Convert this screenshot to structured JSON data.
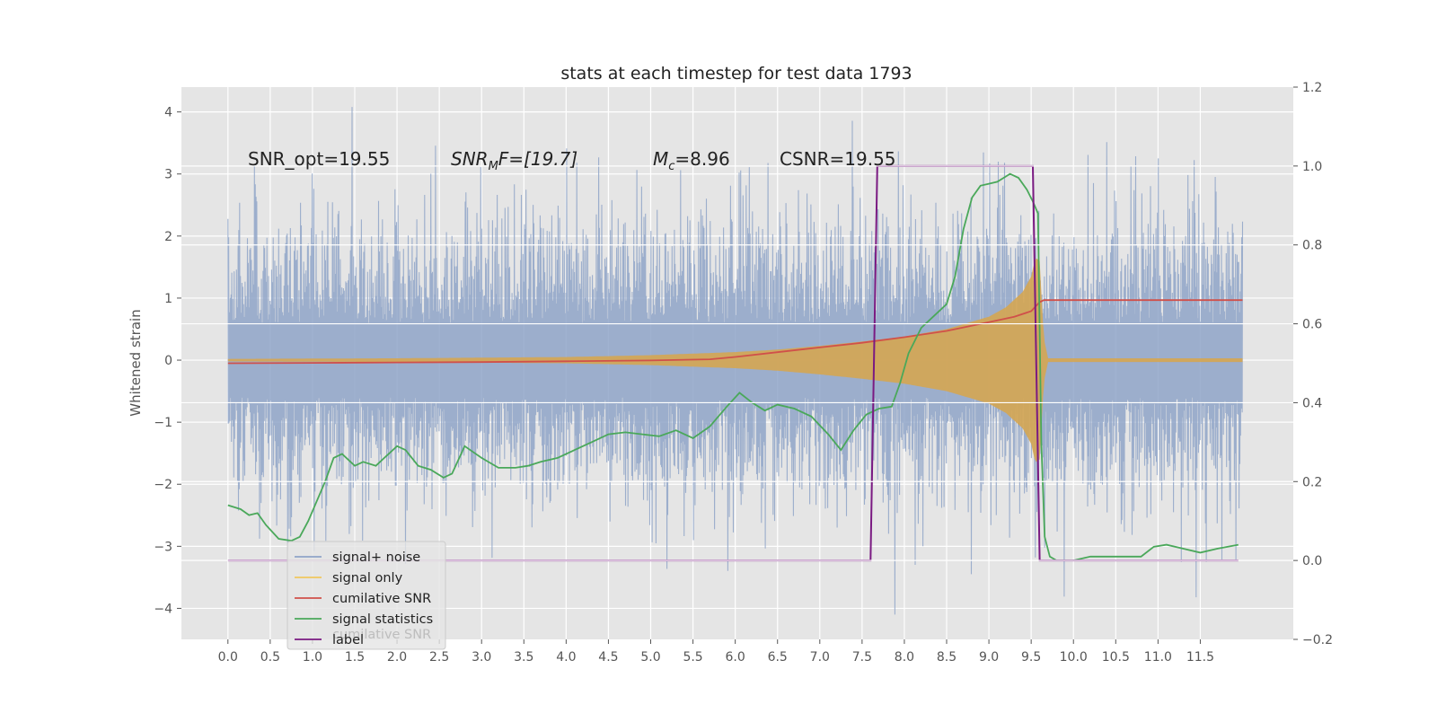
{
  "chart_data": {
    "type": "line",
    "title": "stats at each timestep for test data 1793",
    "ylabel": "Whitened strain",
    "xlabel": "",
    "xlim": [
      -0.55,
      12.6
    ],
    "ylim": [
      -4.5,
      4.4
    ],
    "y2lim": [
      -0.2,
      1.2
    ],
    "xticks": [
      "0.0",
      "0.5",
      "1.0",
      "1.5",
      "2.0",
      "2.5",
      "3.0",
      "3.5",
      "4.0",
      "4.5",
      "5.0",
      "5.5",
      "6.0",
      "6.5",
      "7.0",
      "7.5",
      "8.0",
      "8.5",
      "9.0",
      "9.5",
      "10.0",
      "10.5",
      "11.0",
      "11.5"
    ],
    "yticks": [
      "4",
      "3",
      "2",
      "1",
      "0",
      "−1",
      "−2",
      "−3",
      "−4"
    ],
    "y2ticks": [
      "1.2",
      "1.0",
      "0.8",
      "0.6",
      "0.4",
      "0.2",
      "0.0",
      "−0.2"
    ],
    "grid": true,
    "legend_position": "lower-left",
    "annotations": {
      "snr_opt": "SNR_opt=19.55",
      "snr_mf_main": "SNR",
      "snr_mf_sub": "M",
      "snr_mf_rest": "F=[19.7]",
      "mc_main": "M",
      "mc_sub": "c",
      "mc_rest": "=8.96",
      "csnr": "CSNR=19.55"
    },
    "legend_ghost_text": "cumilative SNR",
    "series": [
      {
        "name": "signal+ noise",
        "color": "#8fa4c8",
        "axis": "left",
        "noise_std": 1.0,
        "x_range": [
          0.0,
          12.0
        ]
      },
      {
        "name": "signal only",
        "color": "#f0c75e",
        "fill": "#d4a655",
        "axis": "left",
        "envelope": {
          "x": [
            0.0,
            2.0,
            4.0,
            5.0,
            6.0,
            6.5,
            7.0,
            7.5,
            8.0,
            8.5,
            9.0,
            9.2,
            9.4,
            9.5,
            9.55,
            9.6,
            9.65,
            9.7,
            12.0
          ],
          "amplitude": [
            0.02,
            0.03,
            0.05,
            0.08,
            0.13,
            0.17,
            0.23,
            0.3,
            0.38,
            0.5,
            0.7,
            0.85,
            1.1,
            1.35,
            1.65,
            1.6,
            0.35,
            0.03,
            0.03
          ]
        }
      },
      {
        "name": "cumilative SNR",
        "color": "#d0504a",
        "axis": "right",
        "x": [
          0.0,
          1.0,
          2.0,
          3.0,
          4.0,
          5.0,
          5.7,
          6.0,
          6.5,
          7.0,
          7.5,
          8.0,
          8.5,
          9.0,
          9.3,
          9.5,
          9.6,
          9.65,
          12.0
        ],
        "y": [
          0.5,
          0.501,
          0.502,
          0.503,
          0.505,
          0.507,
          0.51,
          0.516,
          0.528,
          0.54,
          0.552,
          0.566,
          0.582,
          0.604,
          0.618,
          0.632,
          0.655,
          0.66,
          0.66
        ]
      },
      {
        "name": "signal statistics",
        "color": "#4aa85a",
        "axis": "right",
        "x": [
          0.0,
          0.15,
          0.25,
          0.35,
          0.45,
          0.6,
          0.75,
          0.85,
          0.95,
          1.05,
          1.15,
          1.25,
          1.35,
          1.5,
          1.6,
          1.75,
          1.85,
          2.0,
          2.1,
          2.25,
          2.4,
          2.55,
          2.65,
          2.8,
          3.0,
          3.2,
          3.4,
          3.55,
          3.7,
          3.9,
          4.1,
          4.3,
          4.5,
          4.7,
          4.9,
          5.1,
          5.3,
          5.5,
          5.7,
          5.9,
          6.05,
          6.2,
          6.35,
          6.5,
          6.7,
          6.9,
          7.1,
          7.25,
          7.4,
          7.55,
          7.7,
          7.85,
          7.95,
          8.05,
          8.2,
          8.35,
          8.5,
          8.6,
          8.7,
          8.8,
          8.9,
          9.0,
          9.1,
          9.25,
          9.35,
          9.45,
          9.52,
          9.58,
          9.62,
          9.66,
          9.72,
          9.8,
          10.0,
          10.2,
          10.4,
          10.6,
          10.8,
          10.95,
          11.1,
          11.3,
          11.5,
          11.7,
          11.95
        ],
        "y": [
          0.14,
          0.13,
          0.115,
          0.12,
          0.09,
          0.055,
          0.05,
          0.06,
          0.1,
          0.15,
          0.2,
          0.26,
          0.27,
          0.24,
          0.25,
          0.24,
          0.26,
          0.29,
          0.28,
          0.24,
          0.23,
          0.21,
          0.22,
          0.29,
          0.26,
          0.235,
          0.235,
          0.24,
          0.25,
          0.26,
          0.28,
          0.3,
          0.32,
          0.325,
          0.32,
          0.315,
          0.33,
          0.31,
          0.34,
          0.39,
          0.425,
          0.4,
          0.38,
          0.395,
          0.385,
          0.365,
          0.32,
          0.28,
          0.33,
          0.37,
          0.385,
          0.39,
          0.45,
          0.525,
          0.59,
          0.62,
          0.65,
          0.72,
          0.84,
          0.92,
          0.95,
          0.955,
          0.96,
          0.98,
          0.97,
          0.94,
          0.91,
          0.88,
          0.3,
          0.06,
          0.01,
          0.0,
          0.0,
          0.01,
          0.01,
          0.01,
          0.01,
          0.035,
          0.04,
          0.03,
          0.02,
          0.03,
          0.04
        ]
      },
      {
        "name": "label",
        "color": "#7a1a82",
        "axis": "right",
        "x": [
          0.0,
          7.6,
          7.68,
          9.52,
          9.6,
          11.95
        ],
        "y": [
          0.0,
          0.0,
          1.0,
          1.0,
          0.0,
          0.0
        ]
      }
    ]
  }
}
